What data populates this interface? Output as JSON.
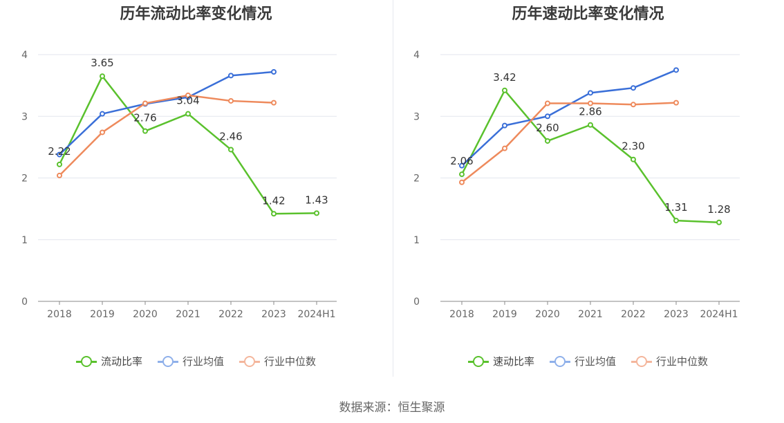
{
  "source": "数据来源：恒生聚源",
  "chart_data": [
    {
      "type": "line",
      "title": "历年流动比率变化情况",
      "categories": [
        "2018",
        "2019",
        "2020",
        "2021",
        "2022",
        "2023",
        "2024H1"
      ],
      "ylim": [
        0,
        4
      ],
      "yticks": [
        "0",
        "1",
        "2",
        "3",
        "4"
      ],
      "grid": true,
      "legend": "bottom",
      "series": [
        {
          "name": "流动比率",
          "color": "#5ac12d",
          "values": [
            2.22,
            3.65,
            2.76,
            3.04,
            2.46,
            1.42,
            1.43
          ],
          "labels": [
            "2.22",
            "3.65",
            "2.76",
            "3.04",
            "2.46",
            "1.42",
            "1.43"
          ]
        },
        {
          "name": "行业均值",
          "color": "#3a6fd8",
          "values": [
            2.38,
            3.04,
            3.2,
            3.31,
            3.66,
            3.72,
            null
          ]
        },
        {
          "name": "行业中位数",
          "color": "#ee8a5c",
          "values": [
            2.04,
            2.74,
            3.21,
            3.34,
            3.25,
            3.22,
            null
          ]
        }
      ]
    },
    {
      "type": "line",
      "title": "历年速动比率变化情况",
      "categories": [
        "2018",
        "2019",
        "2020",
        "2021",
        "2022",
        "2023",
        "2024H1"
      ],
      "ylim": [
        0,
        4
      ],
      "yticks": [
        "0",
        "1",
        "2",
        "3",
        "4"
      ],
      "grid": true,
      "legend": "bottom",
      "series": [
        {
          "name": "速动比率",
          "color": "#5ac12d",
          "values": [
            2.06,
            3.42,
            2.6,
            2.86,
            2.3,
            1.31,
            1.28
          ],
          "labels": [
            "2.06",
            "3.42",
            "2.60",
            "2.86",
            "2.30",
            "1.31",
            "1.28"
          ]
        },
        {
          "name": "行业均值",
          "color": "#3a6fd8",
          "values": [
            2.2,
            2.85,
            3.0,
            3.38,
            3.46,
            3.75,
            null
          ]
        },
        {
          "name": "行业中位数",
          "color": "#ee8a5c",
          "values": [
            1.93,
            2.48,
            3.21,
            3.21,
            3.19,
            3.22,
            null
          ]
        }
      ]
    }
  ]
}
